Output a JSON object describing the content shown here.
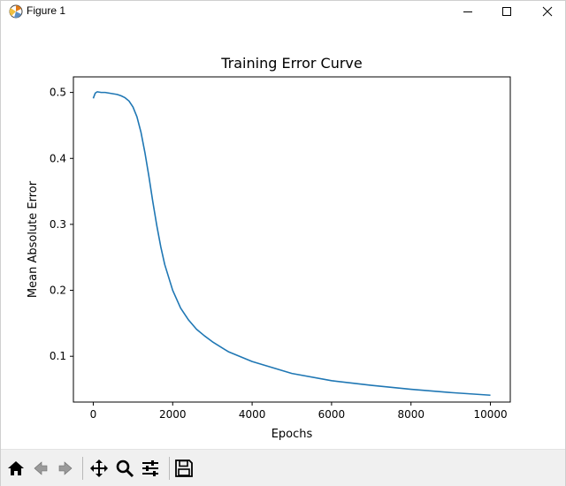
{
  "window": {
    "title": "Figure 1",
    "controls": [
      "minimize",
      "maximize",
      "close"
    ]
  },
  "toolbar": {
    "buttons": [
      {
        "name": "home",
        "icon": "home-icon"
      },
      {
        "name": "back",
        "icon": "back-arrow-icon"
      },
      {
        "name": "forward",
        "icon": "forward-arrow-icon"
      },
      {
        "name": "pan",
        "icon": "move-icon"
      },
      {
        "name": "zoom",
        "icon": "magnifier-icon"
      },
      {
        "name": "configure-subplots",
        "icon": "sliders-icon"
      },
      {
        "name": "save",
        "icon": "floppy-icon"
      }
    ]
  },
  "chart_data": {
    "type": "line",
    "title": "Training Error Curve",
    "xlabel": "Epochs",
    "ylabel": "Mean Absolute Error",
    "xlim": [
      -500,
      10500
    ],
    "ylim": [
      0.0306,
      0.5236
    ],
    "xticks": [
      0,
      2000,
      4000,
      6000,
      8000,
      10000
    ],
    "yticks": [
      0.1,
      0.2,
      0.3,
      0.4,
      0.5
    ],
    "grid": false,
    "series": [
      {
        "color": "#1f77b4",
        "x": [
          0,
          50,
          100,
          200,
          300,
          400,
          500,
          600,
          700,
          800,
          900,
          1000,
          1100,
          1200,
          1300,
          1400,
          1500,
          1600,
          1700,
          1800,
          2000,
          2200,
          2400,
          2600,
          2800,
          3000,
          3400,
          4000,
          5000,
          6000,
          7000,
          8000,
          9000,
          10000
        ],
        "y": [
          0.491,
          0.499,
          0.501,
          0.5,
          0.5,
          0.499,
          0.498,
          0.497,
          0.495,
          0.492,
          0.487,
          0.478,
          0.463,
          0.44,
          0.409,
          0.373,
          0.334,
          0.298,
          0.266,
          0.239,
          0.2,
          0.173,
          0.155,
          0.141,
          0.131,
          0.122,
          0.107,
          0.092,
          0.074,
          0.063,
          0.056,
          0.05,
          0.045,
          0.041
        ]
      }
    ]
  }
}
